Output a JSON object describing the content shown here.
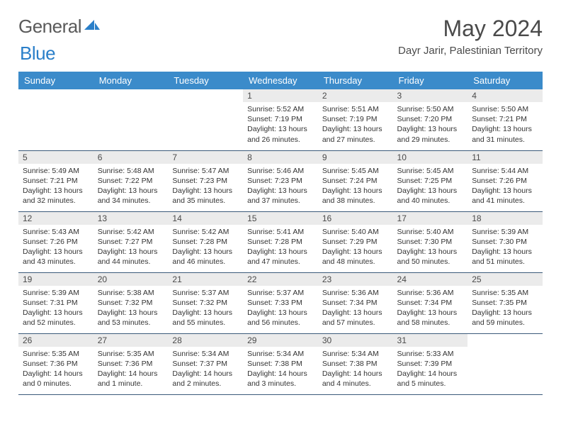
{
  "logo": {
    "text1": "General",
    "text2": "Blue"
  },
  "title": "May 2024",
  "location": "Dayr Jarir, Palestinian Territory",
  "colors": {
    "header_bg": "#3b8bca",
    "header_text": "#ffffff",
    "daynum_bg": "#ebebeb",
    "border": "#3b5a7a",
    "logo_gray": "#5a5a5a",
    "logo_blue": "#2a7fc9"
  },
  "weekdays": [
    "Sunday",
    "Monday",
    "Tuesday",
    "Wednesday",
    "Thursday",
    "Friday",
    "Saturday"
  ],
  "weeks": [
    [
      {
        "empty": true
      },
      {
        "empty": true
      },
      {
        "empty": true
      },
      {
        "n": "1",
        "sr": "5:52 AM",
        "ss": "7:19 PM",
        "dl": "13 hours and 26 minutes."
      },
      {
        "n": "2",
        "sr": "5:51 AM",
        "ss": "7:19 PM",
        "dl": "13 hours and 27 minutes."
      },
      {
        "n": "3",
        "sr": "5:50 AM",
        "ss": "7:20 PM",
        "dl": "13 hours and 29 minutes."
      },
      {
        "n": "4",
        "sr": "5:50 AM",
        "ss": "7:21 PM",
        "dl": "13 hours and 31 minutes."
      }
    ],
    [
      {
        "n": "5",
        "sr": "5:49 AM",
        "ss": "7:21 PM",
        "dl": "13 hours and 32 minutes."
      },
      {
        "n": "6",
        "sr": "5:48 AM",
        "ss": "7:22 PM",
        "dl": "13 hours and 34 minutes."
      },
      {
        "n": "7",
        "sr": "5:47 AM",
        "ss": "7:23 PM",
        "dl": "13 hours and 35 minutes."
      },
      {
        "n": "8",
        "sr": "5:46 AM",
        "ss": "7:23 PM",
        "dl": "13 hours and 37 minutes."
      },
      {
        "n": "9",
        "sr": "5:45 AM",
        "ss": "7:24 PM",
        "dl": "13 hours and 38 minutes."
      },
      {
        "n": "10",
        "sr": "5:45 AM",
        "ss": "7:25 PM",
        "dl": "13 hours and 40 minutes."
      },
      {
        "n": "11",
        "sr": "5:44 AM",
        "ss": "7:26 PM",
        "dl": "13 hours and 41 minutes."
      }
    ],
    [
      {
        "n": "12",
        "sr": "5:43 AM",
        "ss": "7:26 PM",
        "dl": "13 hours and 43 minutes."
      },
      {
        "n": "13",
        "sr": "5:42 AM",
        "ss": "7:27 PM",
        "dl": "13 hours and 44 minutes."
      },
      {
        "n": "14",
        "sr": "5:42 AM",
        "ss": "7:28 PM",
        "dl": "13 hours and 46 minutes."
      },
      {
        "n": "15",
        "sr": "5:41 AM",
        "ss": "7:28 PM",
        "dl": "13 hours and 47 minutes."
      },
      {
        "n": "16",
        "sr": "5:40 AM",
        "ss": "7:29 PM",
        "dl": "13 hours and 48 minutes."
      },
      {
        "n": "17",
        "sr": "5:40 AM",
        "ss": "7:30 PM",
        "dl": "13 hours and 50 minutes."
      },
      {
        "n": "18",
        "sr": "5:39 AM",
        "ss": "7:30 PM",
        "dl": "13 hours and 51 minutes."
      }
    ],
    [
      {
        "n": "19",
        "sr": "5:39 AM",
        "ss": "7:31 PM",
        "dl": "13 hours and 52 minutes."
      },
      {
        "n": "20",
        "sr": "5:38 AM",
        "ss": "7:32 PM",
        "dl": "13 hours and 53 minutes."
      },
      {
        "n": "21",
        "sr": "5:37 AM",
        "ss": "7:32 PM",
        "dl": "13 hours and 55 minutes."
      },
      {
        "n": "22",
        "sr": "5:37 AM",
        "ss": "7:33 PM",
        "dl": "13 hours and 56 minutes."
      },
      {
        "n": "23",
        "sr": "5:36 AM",
        "ss": "7:34 PM",
        "dl": "13 hours and 57 minutes."
      },
      {
        "n": "24",
        "sr": "5:36 AM",
        "ss": "7:34 PM",
        "dl": "13 hours and 58 minutes."
      },
      {
        "n": "25",
        "sr": "5:35 AM",
        "ss": "7:35 PM",
        "dl": "13 hours and 59 minutes."
      }
    ],
    [
      {
        "n": "26",
        "sr": "5:35 AM",
        "ss": "7:36 PM",
        "dl": "14 hours and 0 minutes."
      },
      {
        "n": "27",
        "sr": "5:35 AM",
        "ss": "7:36 PM",
        "dl": "14 hours and 1 minute."
      },
      {
        "n": "28",
        "sr": "5:34 AM",
        "ss": "7:37 PM",
        "dl": "14 hours and 2 minutes."
      },
      {
        "n": "29",
        "sr": "5:34 AM",
        "ss": "7:38 PM",
        "dl": "14 hours and 3 minutes."
      },
      {
        "n": "30",
        "sr": "5:34 AM",
        "ss": "7:38 PM",
        "dl": "14 hours and 4 minutes."
      },
      {
        "n": "31",
        "sr": "5:33 AM",
        "ss": "7:39 PM",
        "dl": "14 hours and 5 minutes."
      },
      {
        "empty": true
      }
    ]
  ],
  "labels": {
    "sunrise": "Sunrise: ",
    "sunset": "Sunset: ",
    "daylight": "Daylight: "
  }
}
